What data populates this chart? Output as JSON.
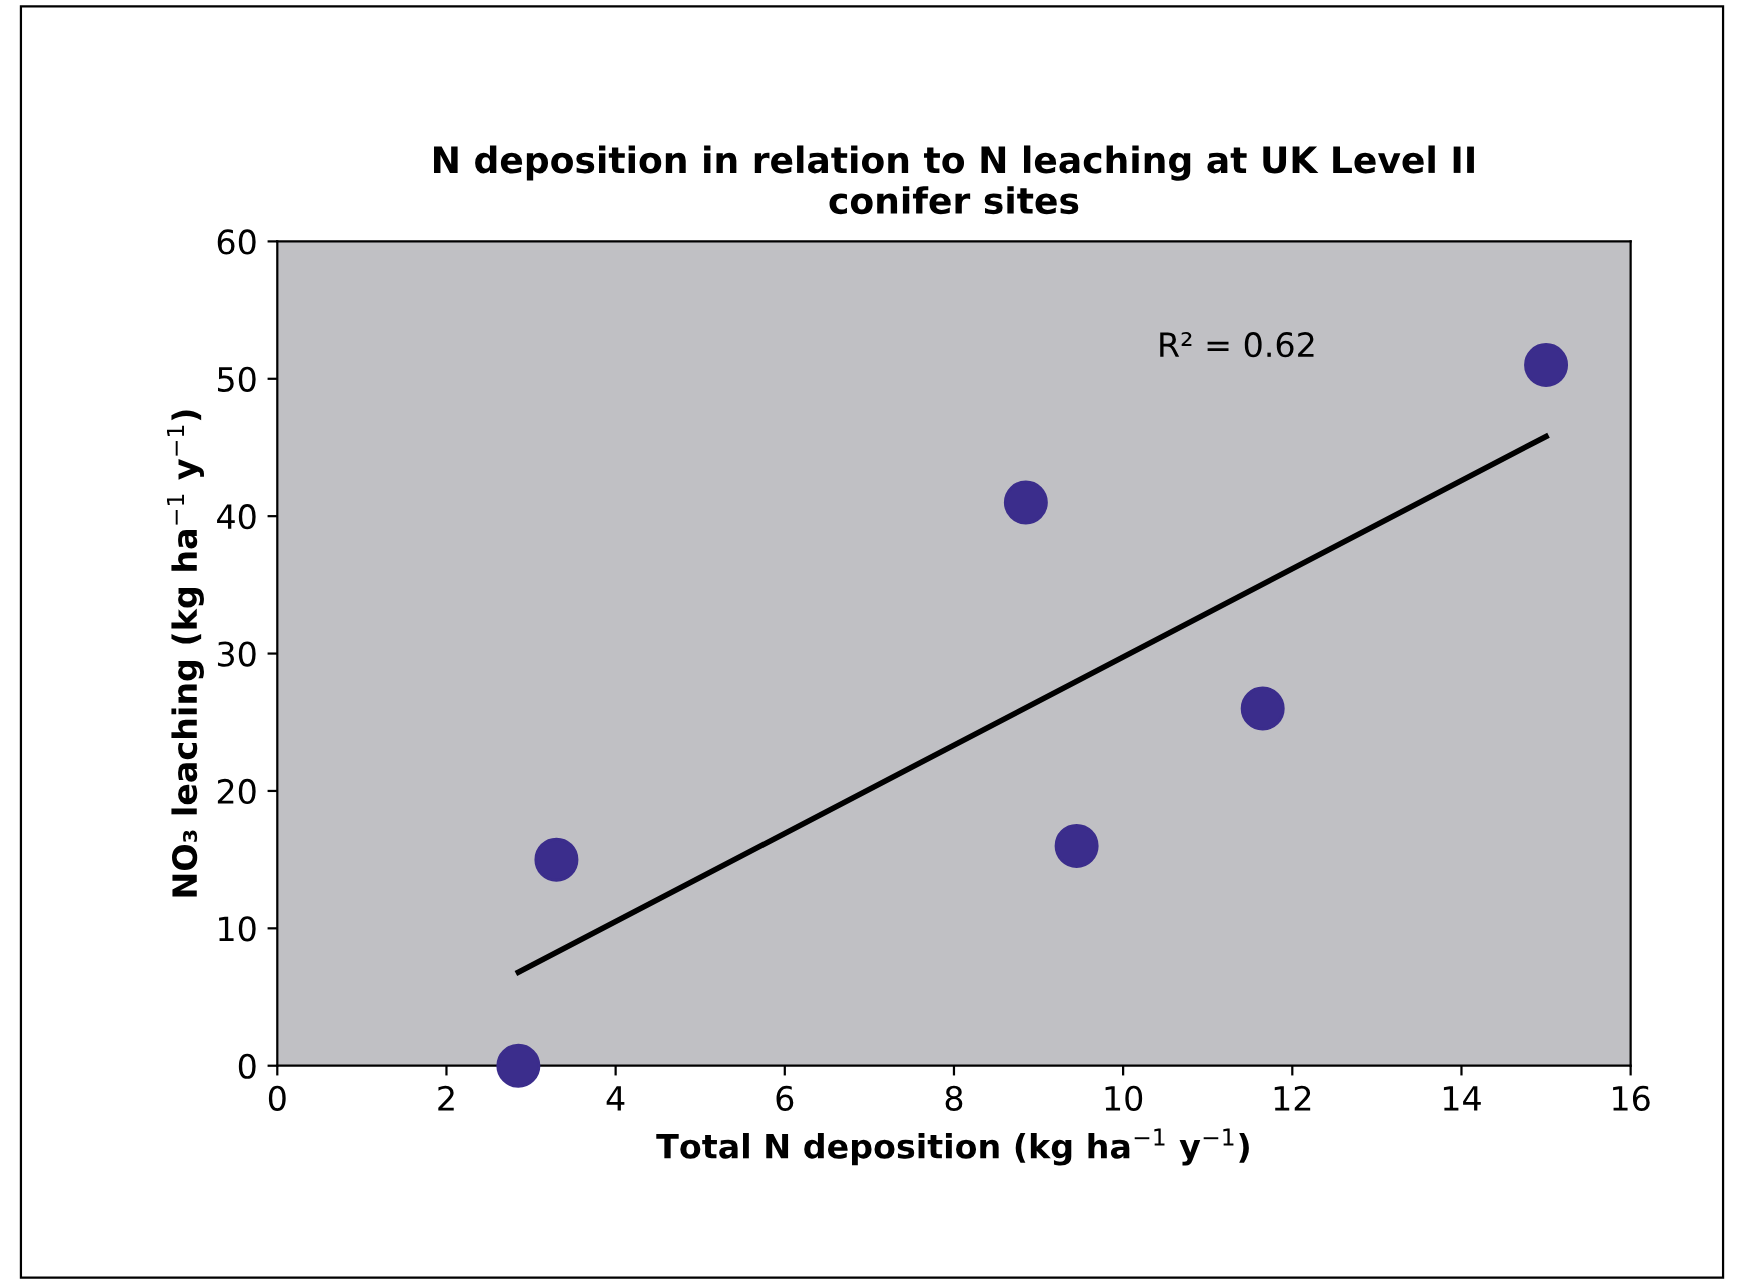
{
  "chart_data": {
    "type": "scatter",
    "title": "N deposition in relation to N leaching at UK Level II\nconifer sites",
    "xlabel": "Total N deposition (kg ha$^{−1}$ y$^{−1}$)",
    "ylabel": "NO₃ leaching (kg ha$^{−1}$ y$^{−1}$)",
    "series": [
      {
        "color": "#3b2d8c",
        "marker": "circle",
        "x": [
          2.85,
          3.3,
          8.85,
          9.45,
          11.65,
          15.0
        ],
        "values": [
          0,
          15,
          41,
          16,
          26,
          51
        ]
      },
      {
        "type": "line",
        "color": "#000000",
        "x": [
          2.85,
          15.0
        ],
        "values": [
          6.8,
          45.8
        ]
      }
    ],
    "annotations": [
      "R² = 0.62"
    ],
    "xlim": [
      0,
      16
    ],
    "xticks": [
      0,
      2,
      4,
      6,
      8,
      10,
      12,
      14,
      16
    ],
    "ylim": [
      0,
      60
    ],
    "yticks": [
      0,
      10,
      20,
      30,
      40,
      50,
      60
    ],
    "grid": false,
    "legend": false
  }
}
